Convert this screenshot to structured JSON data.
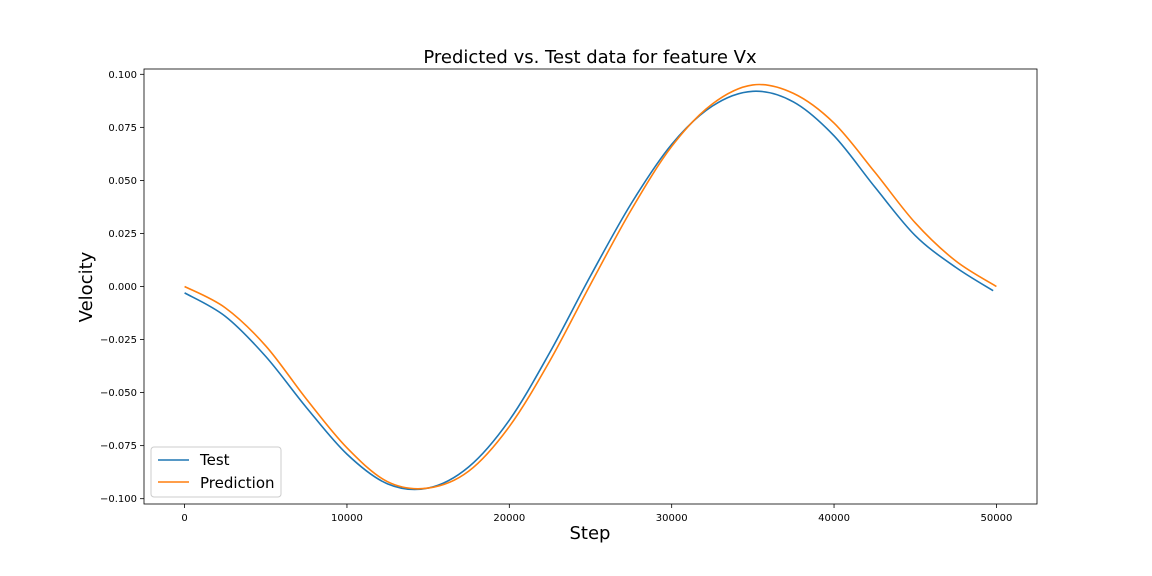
{
  "chart_data": {
    "type": "line",
    "title": "Predicted vs. Test data for feature Vx",
    "xlabel": "Step",
    "ylabel": "Velocity",
    "xlim": [
      -2500,
      52500
    ],
    "ylim": [
      -0.1025,
      0.1025
    ],
    "xticks": [
      0,
      10000,
      20000,
      30000,
      40000,
      50000
    ],
    "xtick_labels": [
      "0",
      "10000",
      "20000",
      "30000",
      "40000",
      "50000"
    ],
    "yticks": [
      -0.1,
      -0.075,
      -0.05,
      -0.025,
      0.0,
      0.025,
      0.05,
      0.075,
      0.1
    ],
    "ytick_labels": [
      "−0.100",
      "−0.075",
      "−0.050",
      "−0.025",
      "0.000",
      "0.025",
      "0.050",
      "0.075",
      "0.100"
    ],
    "grid": false,
    "legend_position": "lower-left",
    "colors": {
      "Test": "#1f77b4",
      "Prediction": "#ff7f0e"
    },
    "x": [
      0,
      2500,
      5000,
      7500,
      10000,
      12500,
      15000,
      17500,
      20000,
      22500,
      25000,
      27500,
      30000,
      32500,
      35000,
      37500,
      40000,
      42500,
      45000,
      47500,
      50000
    ],
    "series": [
      {
        "name": "Test",
        "x": [
          0,
          2500,
          5000,
          7500,
          10000,
          12500,
          15000,
          17500,
          20000,
          22500,
          25000,
          27500,
          30000,
          32500,
          35000,
          37500,
          40000,
          42500,
          45000,
          47500,
          49800
        ],
        "values": [
          -0.003,
          -0.014,
          -0.033,
          -0.057,
          -0.079,
          -0.093,
          -0.095,
          -0.085,
          -0.063,
          -0.031,
          0.005,
          0.039,
          0.067,
          0.085,
          0.092,
          0.087,
          0.071,
          0.047,
          0.024,
          0.009,
          -0.002
        ]
      },
      {
        "name": "Prediction",
        "x": [
          0,
          2500,
          5000,
          7500,
          10000,
          12500,
          15000,
          17500,
          20000,
          22500,
          25000,
          27500,
          30000,
          32500,
          35000,
          37500,
          40000,
          42500,
          45000,
          47500,
          50000
        ],
        "values": [
          0.0,
          -0.01,
          -0.028,
          -0.053,
          -0.076,
          -0.092,
          -0.095,
          -0.087,
          -0.066,
          -0.035,
          0.001,
          0.036,
          0.066,
          0.086,
          0.095,
          0.091,
          0.077,
          0.054,
          0.03,
          0.012,
          0.0
        ]
      }
    ]
  }
}
